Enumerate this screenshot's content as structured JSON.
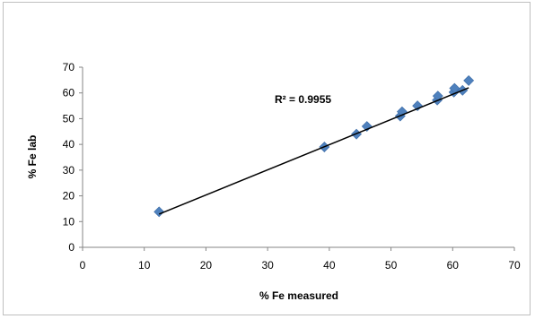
{
  "chart_data": {
    "type": "scatter",
    "title": "",
    "xlabel": "% Fe measured",
    "ylabel": "% Fe lab",
    "xlim": [
      0,
      70
    ],
    "ylim": [
      0,
      70
    ],
    "x_ticks": [
      "0",
      "10",
      "20",
      "30",
      "40",
      "50",
      "60",
      "70"
    ],
    "y_ticks": [
      "0",
      "10",
      "20",
      "30",
      "40",
      "50",
      "60",
      "70"
    ],
    "grid": false,
    "legend": "none",
    "marker_color": "#4f81bd",
    "marker": "diamond",
    "series": [
      {
        "points": [
          {
            "x": 12.4,
            "y": 13.8
          },
          {
            "x": 39.2,
            "y": 39.0
          },
          {
            "x": 44.4,
            "y": 44.0
          },
          {
            "x": 46.1,
            "y": 47.0
          },
          {
            "x": 51.5,
            "y": 51.0
          },
          {
            "x": 51.8,
            "y": 52.7
          },
          {
            "x": 54.3,
            "y": 55.0
          },
          {
            "x": 57.5,
            "y": 57.2
          },
          {
            "x": 57.6,
            "y": 58.8
          },
          {
            "x": 60.2,
            "y": 60.3
          },
          {
            "x": 60.3,
            "y": 61.8
          },
          {
            "x": 61.6,
            "y": 61.0
          },
          {
            "x": 62.6,
            "y": 64.8
          }
        ]
      }
    ],
    "trendline": {
      "type": "linear",
      "from": {
        "x": 12.4,
        "y": 12.9
      },
      "to": {
        "x": 62.6,
        "y": 62.0
      },
      "color": "#000000"
    },
    "annotation": "R² = 0.9955"
  }
}
